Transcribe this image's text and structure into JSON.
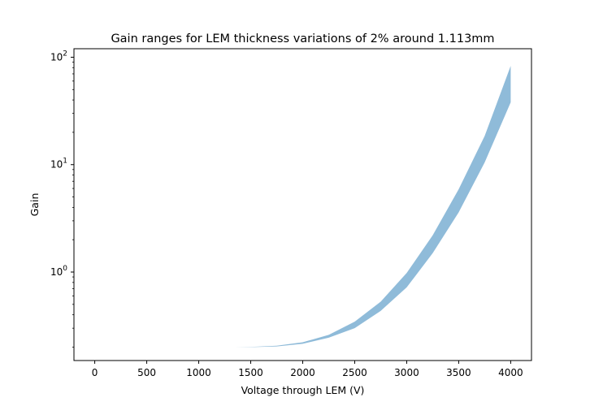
{
  "chart_data": {
    "type": "area",
    "title": "Gain ranges for LEM thickness variations of 2% around 1.113mm",
    "xlabel": "Voltage through LEM (V)",
    "ylabel": "Gain",
    "xlim": [
      -200,
      4200
    ],
    "ylim": [
      0.15,
      120
    ],
    "yscale": "log",
    "grid": false,
    "x_ticks": [
      0,
      500,
      1000,
      1500,
      2000,
      2500,
      3000,
      3500,
      4000
    ],
    "x_tick_labels": [
      "0",
      "500",
      "1000",
      "1500",
      "2000",
      "2500",
      "3000",
      "3500",
      "4000"
    ],
    "y_ticks": [
      1,
      10,
      100
    ],
    "y_tick_labels": [
      {
        "base": "10",
        "exp": "0"
      },
      {
        "base": "10",
        "exp": "1"
      },
      {
        "base": "10",
        "exp": "2"
      }
    ],
    "fill_color": "#1f77b4",
    "fill_alpha": 0.5,
    "series": [
      {
        "x": [
          1350,
          1500,
          1750,
          2000,
          2250,
          2500,
          2750,
          3000,
          3250,
          3500,
          3750,
          4000
        ],
        "y_low": [
          0.2,
          0.2,
          0.203,
          0.215,
          0.245,
          0.3,
          0.435,
          0.72,
          1.5,
          3.6,
          10.5,
          38
        ],
        "y_high": [
          0.2,
          0.201,
          0.206,
          0.222,
          0.26,
          0.345,
          0.53,
          0.98,
          2.2,
          5.9,
          18.5,
          83
        ]
      }
    ]
  }
}
